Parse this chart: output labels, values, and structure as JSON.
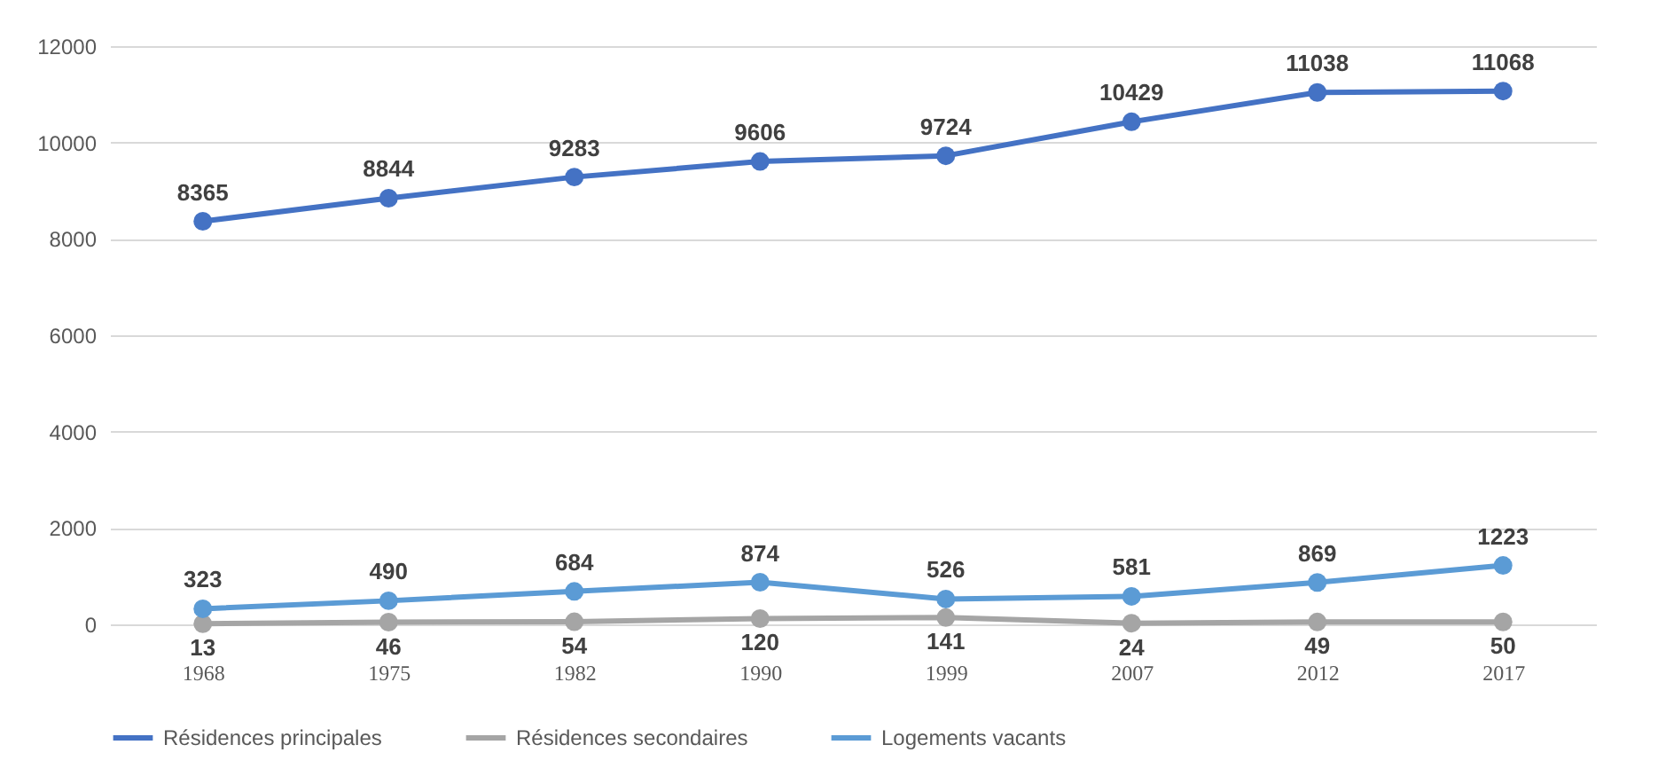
{
  "chart_data": {
    "type": "line",
    "categories": [
      "1968",
      "1975",
      "1982",
      "1990",
      "1999",
      "2007",
      "2012",
      "2017"
    ],
    "series": [
      {
        "name": "Résidences principales",
        "color": "#4472c4",
        "values": [
          8365,
          8844,
          9283,
          9606,
          9724,
          10429,
          11038,
          11068
        ]
      },
      {
        "name": "Résidences secondaires",
        "color": "#a5a5a5",
        "values": [
          13,
          46,
          54,
          120,
          141,
          24,
          49,
          50
        ]
      },
      {
        "name": "Logements vacants",
        "color": "#5b9bd5",
        "values": [
          323,
          490,
          684,
          874,
          526,
          581,
          869,
          1223
        ]
      }
    ],
    "ylim": [
      0,
      12000
    ],
    "yticks": [
      0,
      2000,
      4000,
      6000,
      8000,
      10000,
      12000
    ],
    "grid": "y",
    "legend": "bottom",
    "marker": "circle",
    "line_style": "solid",
    "data_labels": true
  }
}
